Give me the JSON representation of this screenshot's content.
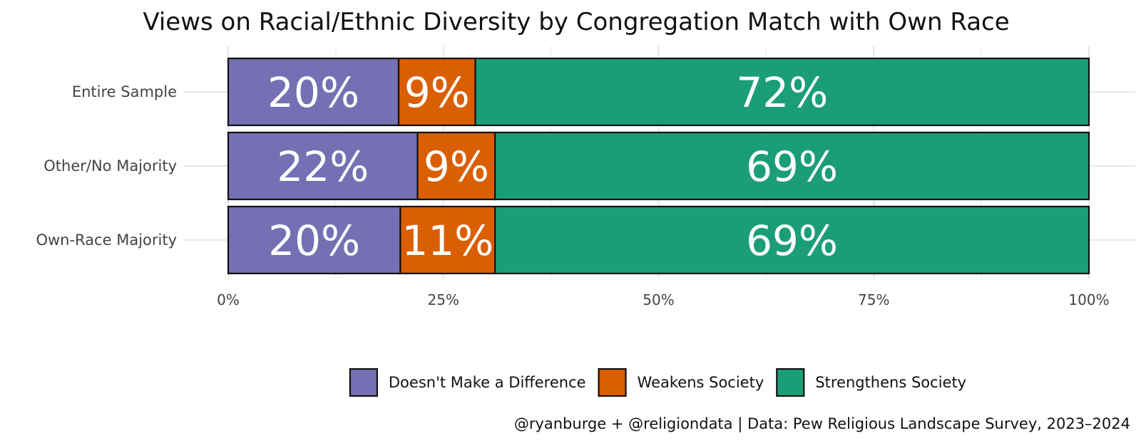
{
  "chart_data": {
    "type": "bar",
    "orientation": "horizontal",
    "stacked": true,
    "title": "Views on Racial/Ethnic Diversity by Congregation Match with Own Race",
    "categories": [
      "Entire Sample",
      "Other/No Majority",
      "Own-Race Majority"
    ],
    "series": [
      {
        "name": "Doesn't Make a Difference",
        "color": "#7570b3",
        "values": [
          20,
          22,
          20
        ],
        "labels": [
          "20%",
          "22%",
          "20%"
        ]
      },
      {
        "name": "Weakens Society",
        "color": "#d95f02",
        "values": [
          9,
          9,
          11
        ],
        "labels": [
          "9%",
          "9%",
          "11%"
        ]
      },
      {
        "name": "Strengthens Society",
        "color": "#1b9e77",
        "values": [
          72,
          69,
          69
        ],
        "labels": [
          "72%",
          "69%",
          "69%"
        ]
      }
    ],
    "xlim": [
      0,
      100
    ],
    "xticks": [
      0,
      25,
      50,
      75,
      100
    ],
    "xtick_labels": [
      "0%",
      "25%",
      "50%",
      "75%",
      "100%"
    ],
    "grid": true,
    "legend_position": "bottom",
    "caption": "@ryanburge + @religiondata | Data: Pew Religious Landscape Survey, 2023–2024"
  }
}
